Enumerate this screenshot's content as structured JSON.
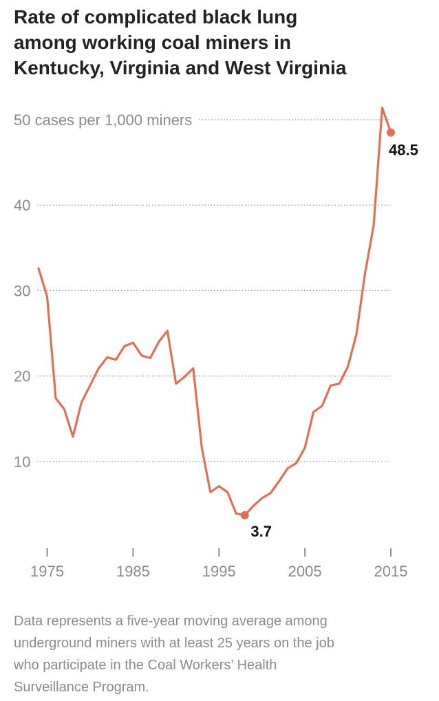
{
  "chart_data": {
    "type": "line",
    "title_lines": [
      "Rate of complicated black lung",
      "among working coal miners in",
      "Kentucky, Virginia and West Virginia"
    ],
    "y_tick_labels": [
      "50 cases per 1,000 miners",
      "40",
      "30",
      "20",
      "10"
    ],
    "y_ticks": [
      50,
      40,
      30,
      20,
      10
    ],
    "x_tick_labels": [
      "1975",
      "1985",
      "1995",
      "2005",
      "2015"
    ],
    "x_ticks": [
      1975,
      1985,
      1995,
      2005,
      2015
    ],
    "ylim": [
      0,
      50
    ],
    "xlim": [
      1974,
      2015
    ],
    "grid": true,
    "line_color": "#e07055",
    "series": [
      {
        "x": [
          1974,
          1975,
          1976,
          1977,
          1978,
          1979,
          1980,
          1981,
          1982,
          1983,
          1984,
          1985,
          1986,
          1987,
          1988,
          1989,
          1990,
          1991,
          1992,
          1993,
          1994,
          1995,
          1996,
          1997,
          1998,
          1999,
          2000,
          2001,
          2002,
          2003,
          2004,
          2005,
          2006,
          2007,
          2008,
          2009,
          2010,
          2011,
          2012,
          2013,
          2014,
          2015
        ],
        "values": [
          32.6,
          29.3,
          17.4,
          16.1,
          12.9,
          16.9,
          18.9,
          20.9,
          22.2,
          21.9,
          23.5,
          23.9,
          22.4,
          22.1,
          24.0,
          25.3,
          19.1,
          19.9,
          20.9,
          11.6,
          6.4,
          7.1,
          6.4,
          3.9,
          3.7,
          4.8,
          5.7,
          6.3,
          7.7,
          9.2,
          9.8,
          11.6,
          15.8,
          16.5,
          18.9,
          19.1,
          21.1,
          24.9,
          32.0,
          37.6,
          51.4,
          48.5
        ]
      }
    ],
    "annotations": [
      {
        "x": 1998,
        "y": 3.7,
        "label": "3.7"
      },
      {
        "x": 2015,
        "y": 48.5,
        "label": "48.5"
      }
    ]
  },
  "note_lines": [
    "Data represents a five-year moving average among",
    "underground miners with at least 25 years on the job",
    "who participate in the Coal Workers’ Health",
    "Surveillance Program."
  ]
}
